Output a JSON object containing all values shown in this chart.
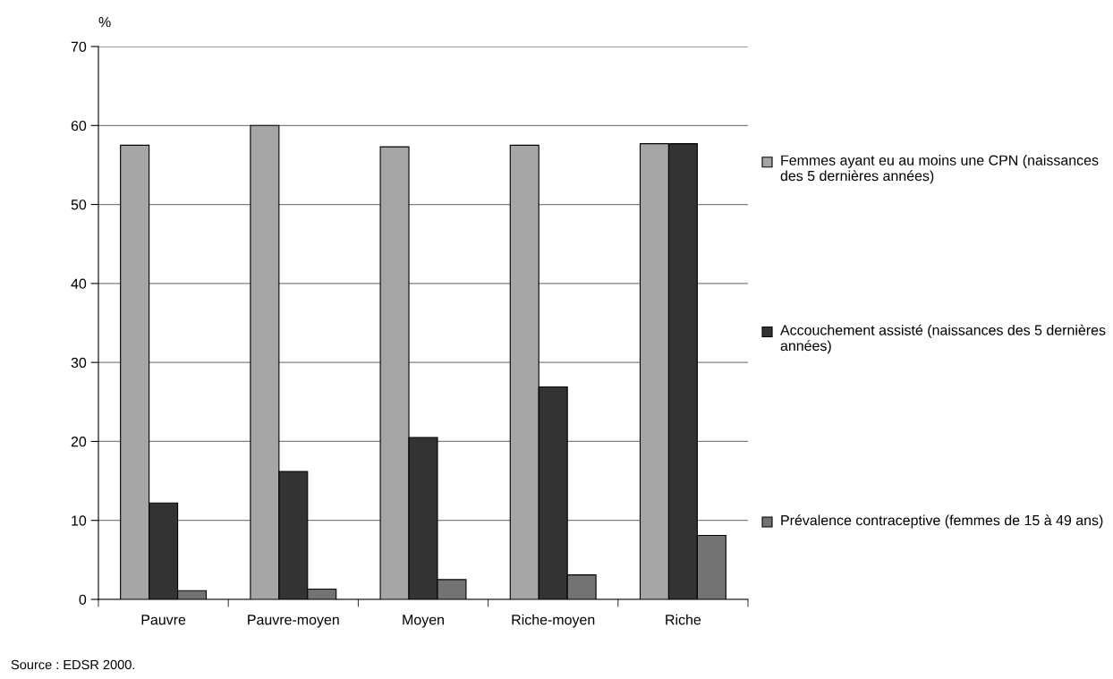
{
  "chart_data": {
    "type": "bar",
    "ylabel": "%",
    "categories": [
      "Pauvre",
      "Pauvre-moyen",
      "Moyen",
      "Riche-moyen",
      "Riche"
    ],
    "series": [
      {
        "name": "Femmes ayant eu au moins une CPN (naissances des 5 dernières années)",
        "color": "#a6a6a6",
        "values": [
          57.5,
          60,
          57.3,
          57.5,
          57.7
        ]
      },
      {
        "name": "Accouchement assisté (naissances des 5 dernières années)",
        "color": "#333333",
        "values": [
          12.2,
          16.2,
          20.5,
          26.9,
          57.7
        ]
      },
      {
        "name": "Prévalence contraceptive (femmes de 15 à 49 ans)",
        "color": "#737373",
        "values": [
          1.1,
          1.3,
          2.5,
          3.1,
          8.1
        ]
      }
    ],
    "ylim": [
      0,
      70
    ],
    "yticks": [
      0,
      10,
      20,
      30,
      40,
      50,
      60,
      70
    ],
    "grid": "y",
    "legend": "right",
    "annotations": [
      "Source : EDSR 2000."
    ]
  }
}
